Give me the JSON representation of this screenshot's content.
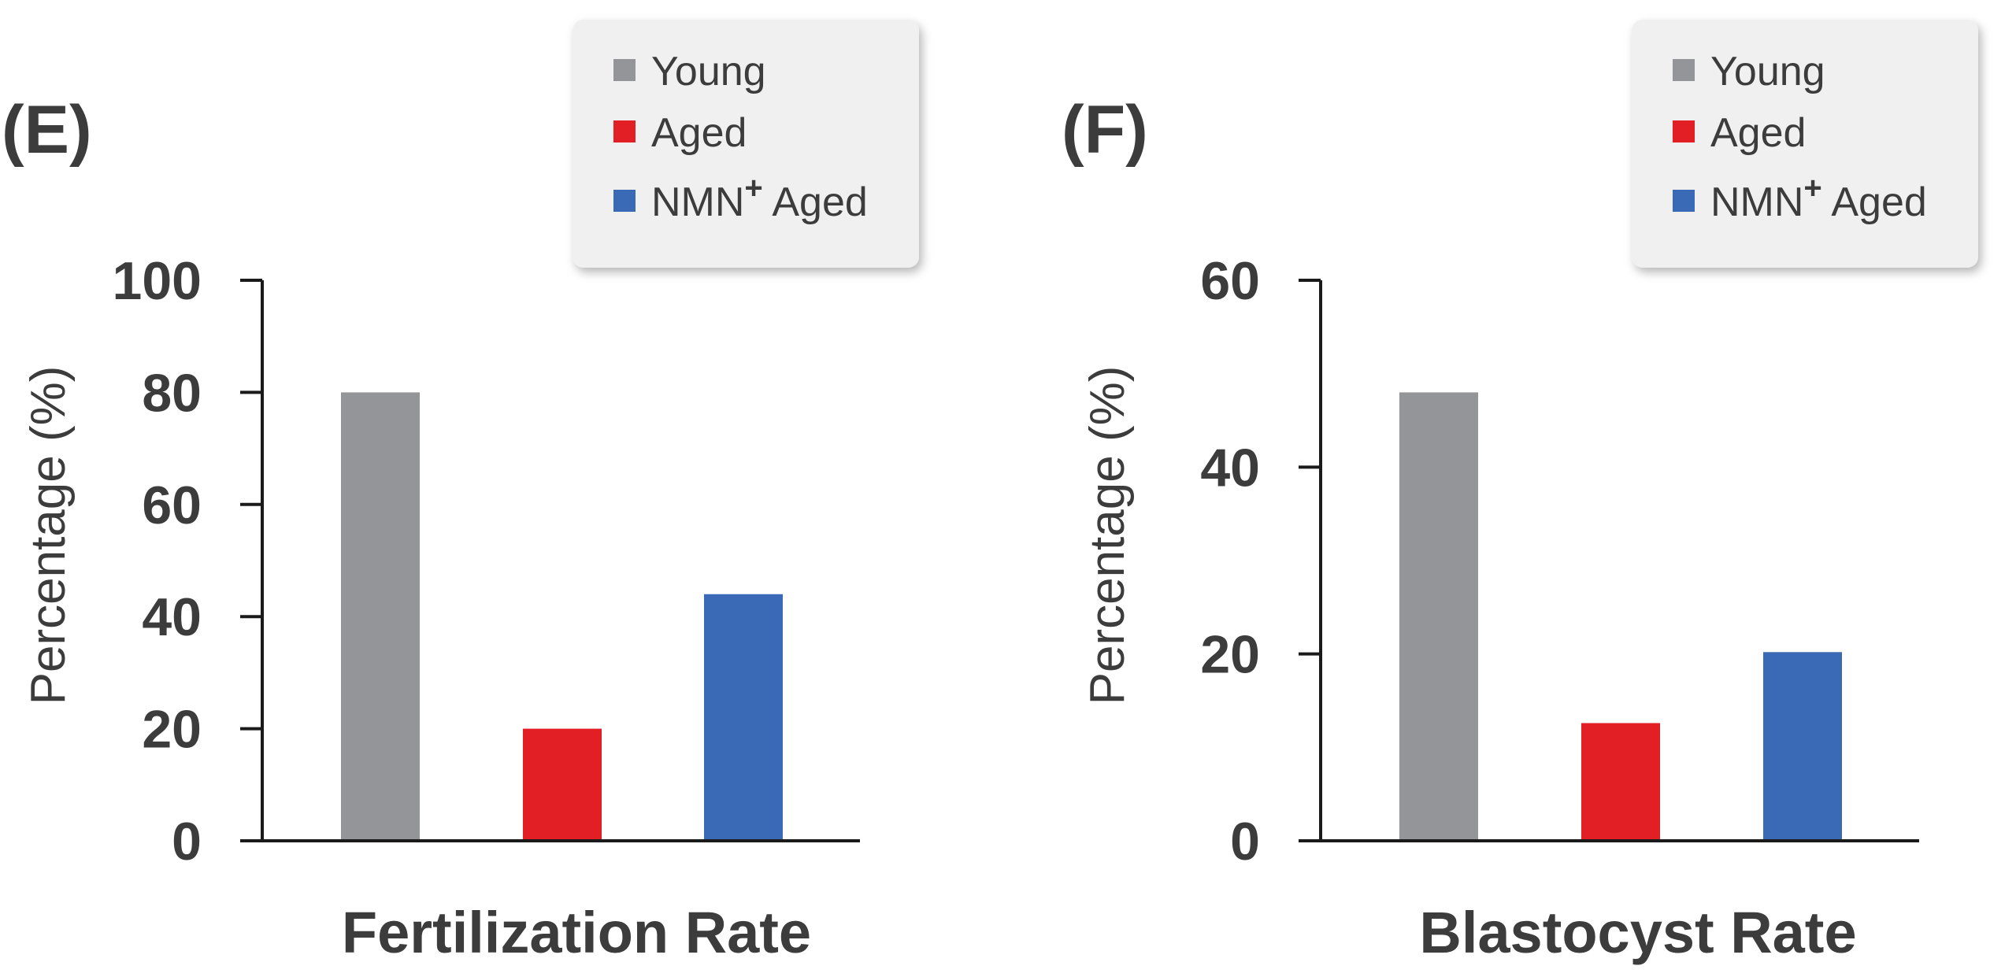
{
  "chart_data": [
    {
      "panel_label": "(E)",
      "type": "bar",
      "title": "Fertilization Rate",
      "ylabel": "Percentage (%)",
      "xlabel": "",
      "ylim": [
        0,
        100
      ],
      "yticks": [
        0,
        20,
        40,
        60,
        80,
        100
      ],
      "categories": [
        "Young",
        "Aged",
        "NMN+ Aged"
      ],
      "values": [
        80,
        20,
        44
      ],
      "colors": [
        "#949599",
        "#e31f26",
        "#3a6ab5"
      ],
      "legend": {
        "placement": "top-right",
        "entries": [
          {
            "label": "Young",
            "sup": "",
            "suffix": "",
            "color": "#949599"
          },
          {
            "label": "Aged",
            "sup": "",
            "suffix": "",
            "color": "#e31f26"
          },
          {
            "label": "NMN",
            "sup": "+",
            "suffix": " Aged",
            "color": "#3a6ab5"
          }
        ]
      },
      "grid": false
    },
    {
      "panel_label": "(F)",
      "type": "bar",
      "title": "Blastocyst Rate",
      "ylabel": "Percentage (%)",
      "xlabel": "",
      "ylim": [
        0,
        60
      ],
      "yticks": [
        0,
        20,
        40,
        60
      ],
      "categories": [
        "Young",
        "Aged",
        "NMN+ Aged"
      ],
      "values": [
        48,
        12.6,
        20.2
      ],
      "colors": [
        "#949599",
        "#e31f26",
        "#3a6ab5"
      ],
      "legend": {
        "placement": "top-right",
        "entries": [
          {
            "label": "Young",
            "sup": "",
            "suffix": "",
            "color": "#949599"
          },
          {
            "label": "Aged",
            "sup": "",
            "suffix": "",
            "color": "#e31f26"
          },
          {
            "label": "NMN",
            "sup": "+",
            "suffix": " Aged",
            "color": "#3a6ab5"
          }
        ]
      },
      "grid": false
    }
  ]
}
